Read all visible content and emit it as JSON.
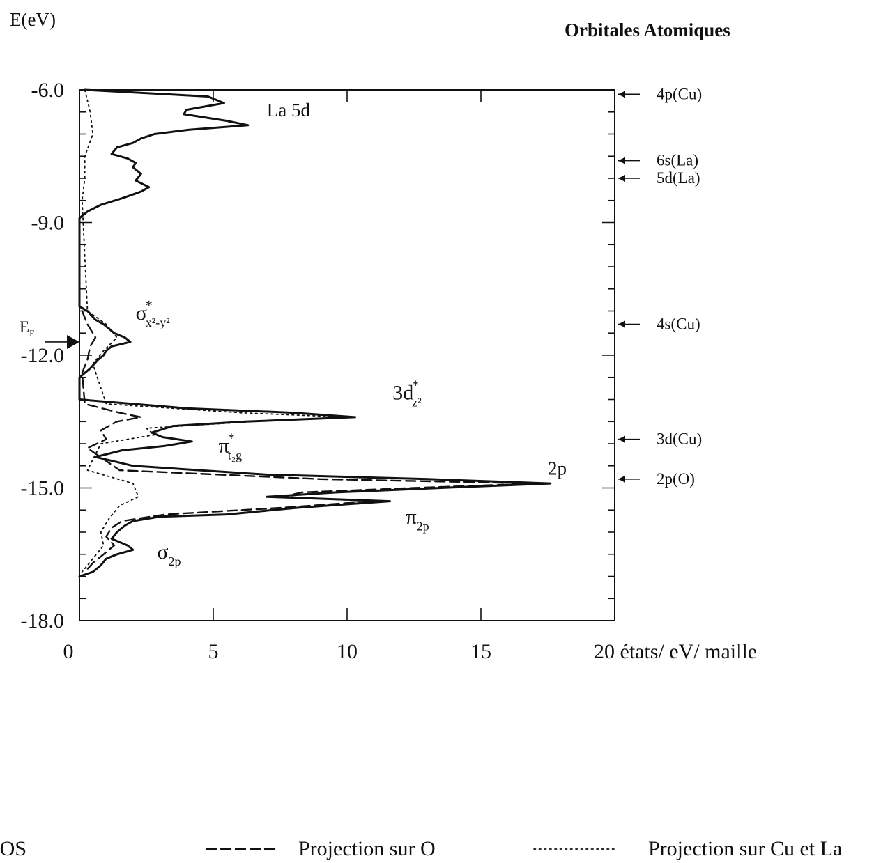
{
  "chart_data": {
    "type": "line",
    "orientation": "vertical",
    "title": "Orbitales Atomiques",
    "ylabel": "E(eV)",
    "xlabel": "20 états/ eV/ maille",
    "xlim": [
      0,
      20
    ],
    "ylim": [
      -18.0,
      -6.0
    ],
    "x_ticks": [
      0,
      5,
      10,
      15
    ],
    "y_ticks": [
      -6.0,
      -9.0,
      -12.0,
      -15.0,
      -18.0
    ],
    "grid": false,
    "legend_position": "bottom",
    "fermi_level": {
      "label": "E",
      "sub": "F",
      "energy": -11.7
    },
    "atomic_orbitals": [
      {
        "label": "4p(Cu)",
        "energy": -6.1
      },
      {
        "label": "6s(La)",
        "energy": -7.6
      },
      {
        "label": "5d(La)",
        "energy": -8.0
      },
      {
        "label": "4s(Cu)",
        "energy": -11.3
      },
      {
        "label": "3d(Cu)",
        "energy": -13.9
      },
      {
        "label": "2p(O)",
        "energy": -14.8
      }
    ],
    "annotations": [
      {
        "id": "la5d",
        "text": "La 5d",
        "energy": -6.6,
        "dos": 7.0
      },
      {
        "id": "sigma-x2y2",
        "base": "σ",
        "sup": "*",
        "sub": "x²-y²",
        "energy": -11.2,
        "dos": 2.1
      },
      {
        "id": "3dz2",
        "base": "3d",
        "sup": "*",
        "sub": "z²",
        "energy": -13.0,
        "dos": 11.7
      },
      {
        "id": "pi-t2g",
        "base": "π",
        "sup": "*",
        "sub": "t₂g",
        "energy": -14.2,
        "dos": 5.2
      },
      {
        "id": "2p",
        "text": "2p",
        "energy": -14.7,
        "dos": 17.5
      },
      {
        "id": "pi-2p",
        "base": "π",
        "sub": "2p",
        "energy": -15.8,
        "dos": 12.2
      },
      {
        "id": "sigma-2p",
        "base": "σ",
        "sub": "2p",
        "energy": -16.6,
        "dos": 2.9
      }
    ],
    "series": [
      {
        "name": "DOS",
        "style": "solid",
        "points": [
          [
            -6.0,
            0.2
          ],
          [
            -6.15,
            4.8
          ],
          [
            -6.3,
            5.4
          ],
          [
            -6.45,
            4.0
          ],
          [
            -6.55,
            3.9
          ],
          [
            -6.7,
            5.5
          ],
          [
            -6.8,
            6.3
          ],
          [
            -6.9,
            4.1
          ],
          [
            -7.0,
            2.8
          ],
          [
            -7.1,
            2.3
          ],
          [
            -7.2,
            2.0
          ],
          [
            -7.3,
            1.4
          ],
          [
            -7.45,
            1.2
          ],
          [
            -7.55,
            1.8
          ],
          [
            -7.65,
            2.1
          ],
          [
            -7.75,
            2.0
          ],
          [
            -7.9,
            2.3
          ],
          [
            -8.05,
            2.1
          ],
          [
            -8.2,
            2.6
          ],
          [
            -8.3,
            2.3
          ],
          [
            -8.45,
            1.6
          ],
          [
            -8.6,
            0.8
          ],
          [
            -8.75,
            0.3
          ],
          [
            -8.9,
            0.0
          ],
          [
            -10.9,
            0.0
          ],
          [
            -11.0,
            0.3
          ],
          [
            -11.2,
            0.6
          ],
          [
            -11.3,
            0.9
          ],
          [
            -11.4,
            1.1
          ],
          [
            -11.5,
            1.3
          ],
          [
            -11.6,
            1.7
          ],
          [
            -11.7,
            1.9
          ],
          [
            -11.8,
            1.2
          ],
          [
            -11.9,
            1.0
          ],
          [
            -12.0,
            0.9
          ],
          [
            -12.1,
            0.7
          ],
          [
            -12.3,
            0.4
          ],
          [
            -12.5,
            0.0
          ],
          [
            -13.0,
            0.0
          ],
          [
            -13.2,
            4.0
          ],
          [
            -13.3,
            8.0
          ],
          [
            -13.4,
            10.3
          ],
          [
            -13.5,
            6.2
          ],
          [
            -13.6,
            3.5
          ],
          [
            -13.75,
            2.7
          ],
          [
            -13.85,
            3.1
          ],
          [
            -13.95,
            4.2
          ],
          [
            -14.05,
            3.2
          ],
          [
            -14.15,
            1.6
          ],
          [
            -14.3,
            0.6
          ],
          [
            -14.5,
            2.0
          ],
          [
            -14.7,
            7.0
          ],
          [
            -14.8,
            13.0
          ],
          [
            -14.9,
            17.6
          ],
          [
            -15.0,
            13.5
          ],
          [
            -15.1,
            9.6
          ],
          [
            -15.2,
            7.0
          ],
          [
            -15.3,
            11.6
          ],
          [
            -15.45,
            8.1
          ],
          [
            -15.6,
            5.5
          ],
          [
            -15.65,
            3.0
          ],
          [
            -15.75,
            2.0
          ],
          [
            -15.85,
            1.7
          ],
          [
            -16.0,
            1.4
          ],
          [
            -16.15,
            1.2
          ],
          [
            -16.3,
            1.8
          ],
          [
            -16.4,
            2.0
          ],
          [
            -16.5,
            1.4
          ],
          [
            -16.6,
            1.0
          ],
          [
            -16.75,
            0.8
          ],
          [
            -16.9,
            0.5
          ],
          [
            -17.0,
            0.0
          ]
        ]
      },
      {
        "name": "Projection sur O",
        "style": "dashed",
        "points": [
          [
            -11.0,
            0.1
          ],
          [
            -11.3,
            0.3
          ],
          [
            -11.6,
            0.6
          ],
          [
            -11.8,
            0.4
          ],
          [
            -12.1,
            0.3
          ],
          [
            -12.4,
            0.1
          ],
          [
            -13.1,
            0.2
          ],
          [
            -13.3,
            1.5
          ],
          [
            -13.4,
            2.3
          ],
          [
            -13.5,
            1.4
          ],
          [
            -13.7,
            0.8
          ],
          [
            -13.9,
            1.0
          ],
          [
            -14.1,
            0.3
          ],
          [
            -14.6,
            1.5
          ],
          [
            -14.8,
            9.0
          ],
          [
            -14.9,
            17.1
          ],
          [
            -15.0,
            12.5
          ],
          [
            -15.1,
            8.3
          ],
          [
            -15.2,
            7.6
          ],
          [
            -15.3,
            11.0
          ],
          [
            -15.45,
            7.5
          ],
          [
            -15.6,
            3.2
          ],
          [
            -15.75,
            1.6
          ],
          [
            -15.9,
            1.2
          ],
          [
            -16.1,
            1.0
          ],
          [
            -16.3,
            1.3
          ],
          [
            -16.5,
            0.9
          ],
          [
            -16.7,
            0.5
          ],
          [
            -16.9,
            0.2
          ]
        ]
      },
      {
        "name": "Projection sur Cu et La",
        "style": "dotted",
        "points": [
          [
            -6.0,
            0.2
          ],
          [
            -6.5,
            0.4
          ],
          [
            -7.0,
            0.5
          ],
          [
            -7.5,
            0.2
          ],
          [
            -8.0,
            0.2
          ],
          [
            -8.5,
            0.1
          ],
          [
            -11.0,
            0.3
          ],
          [
            -11.3,
            1.0
          ],
          [
            -11.6,
            1.4
          ],
          [
            -11.9,
            0.9
          ],
          [
            -12.2,
            0.5
          ],
          [
            -13.1,
            1.0
          ],
          [
            -13.3,
            6.0
          ],
          [
            -13.4,
            10.0
          ],
          [
            -13.5,
            6.5
          ],
          [
            -13.65,
            2.5
          ],
          [
            -13.8,
            2.8
          ],
          [
            -14.0,
            0.8
          ],
          [
            -14.6,
            0.3
          ],
          [
            -14.9,
            2.0
          ],
          [
            -15.2,
            2.2
          ],
          [
            -15.4,
            1.5
          ],
          [
            -15.7,
            1.1
          ],
          [
            -16.0,
            0.8
          ],
          [
            -16.3,
            0.9
          ],
          [
            -16.6,
            0.5
          ],
          [
            -16.9,
            0.1
          ]
        ]
      }
    ]
  }
}
